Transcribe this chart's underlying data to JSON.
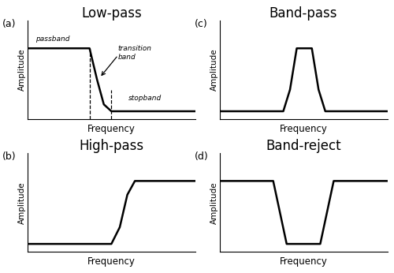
{
  "fig_width": 5.0,
  "fig_height": 3.46,
  "dpi": 100,
  "background_color": "#ffffff",
  "line_color": "black",
  "line_width": 1.8,
  "subplot_labels": [
    "(a)",
    "(b)",
    "(c)",
    "(d)"
  ],
  "titles": [
    "Low-pass",
    "High-pass",
    "Band-pass",
    "Band-reject"
  ],
  "xlabel": "Frequency",
  "ylabel": "Amplitude",
  "title_fontsize": 12,
  "label_fontsize": 8.5,
  "axis_label_fontsize": 7.5,
  "panel_label_fontsize": 9,
  "annotation_fontsize": 6.5
}
